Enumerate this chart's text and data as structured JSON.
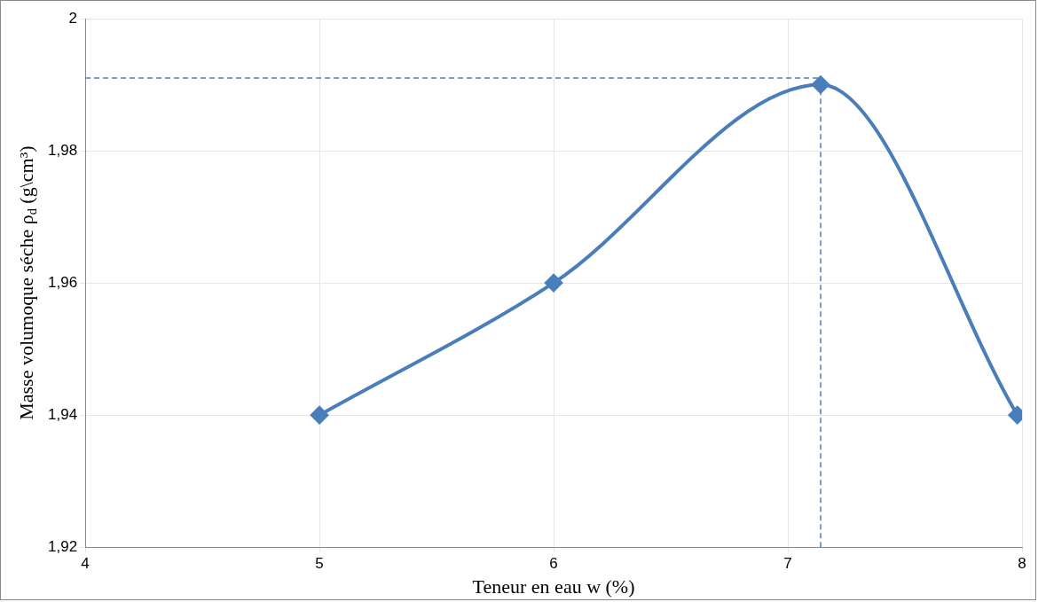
{
  "chart_data": {
    "type": "line",
    "xlabel": "Teneur en eau w (%)",
    "ylabel": "Masse volumoque séche ρ$_{d}$ (g\\cm³)",
    "x": [
      5,
      6,
      7.14,
      7.98
    ],
    "series": [
      {
        "color": "#4a7ebb",
        "values": [
          1.94,
          1.96,
          1.99,
          1.94
        ]
      }
    ],
    "xlim": [
      4,
      8
    ],
    "xticks": [
      4,
      5,
      6,
      7,
      8
    ],
    "ylim": [
      1.92,
      2
    ],
    "yticks": [
      {
        "value": 1.92,
        "label": "1,92"
      },
      {
        "value": 1.94,
        "label": "1,94"
      },
      {
        "value": 1.96,
        "label": "1,96"
      },
      {
        "value": 1.98,
        "label": "1,98"
      },
      {
        "value": 2,
        "label": "2"
      }
    ],
    "ref_lines": [
      {
        "axis": "y",
        "value": 1.991,
        "color": "#4a7ebb",
        "line_style": "dashed"
      },
      {
        "axis": "x",
        "value": 7.14,
        "color": "#4a7ebb",
        "line_style": "dashed"
      }
    ],
    "grid": true,
    "marker": "diamond",
    "line_style": "solid",
    "legend": false
  }
}
